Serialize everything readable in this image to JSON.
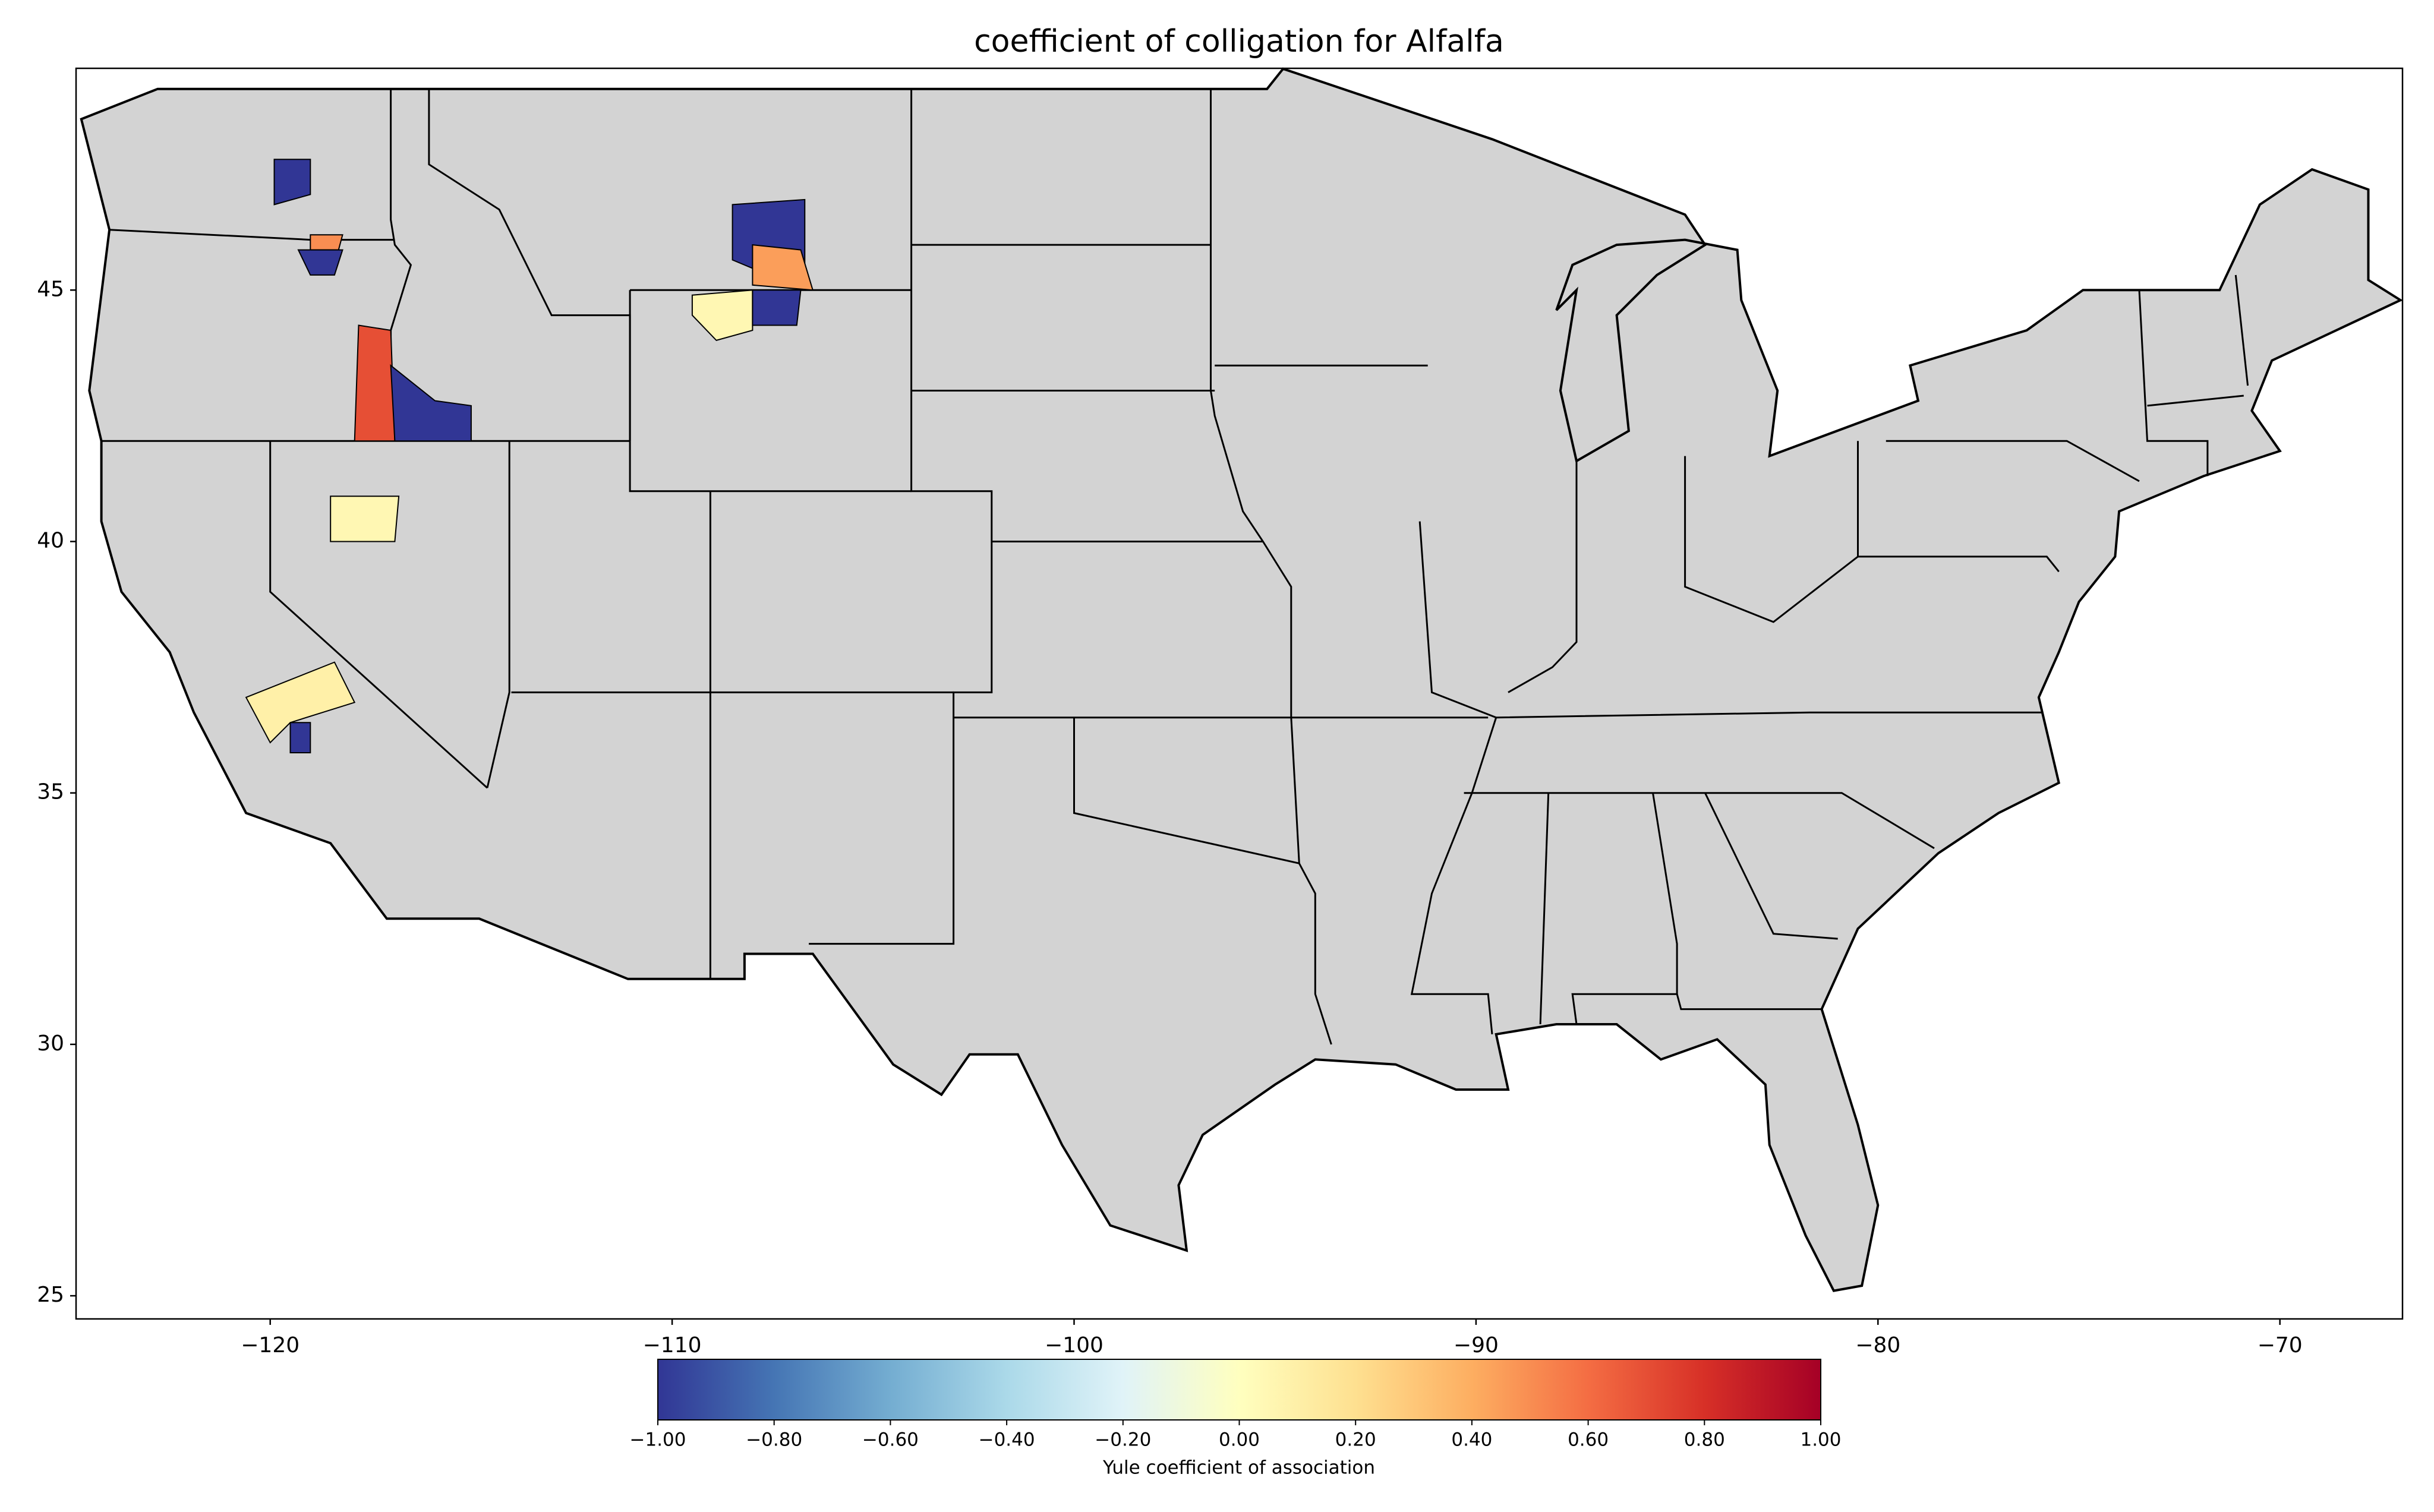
{
  "chart_data": {
    "type": "choropleth",
    "title": "coefficient of colligation for Alfalfa",
    "xlim": [
      -124.83,
      -66.95
    ],
    "ylim": [
      24.54,
      49.41
    ],
    "xticks": [
      {
        "value": -120,
        "label": "−120"
      },
      {
        "value": -110,
        "label": "−110"
      },
      {
        "value": -100,
        "label": "−100"
      },
      {
        "value": -90,
        "label": "−90"
      },
      {
        "value": -80,
        "label": "−80"
      },
      {
        "value": -70,
        "label": "−70"
      }
    ],
    "yticks": [
      25,
      30,
      35,
      40,
      45
    ],
    "values": [
      -1,
      0.5,
      -1,
      0.7,
      -1,
      0.05,
      0.1,
      -1,
      -1,
      0.45,
      0.05,
      -1
    ],
    "colormap": "RdYlBu_r",
    "clim": [
      -1,
      1
    ],
    "colorbar_label": "Yule coefficient of association",
    "colorbar_ticks": [
      {
        "value": -1,
        "label": "−1.00"
      },
      {
        "value": -0.8,
        "label": "−0.80"
      },
      {
        "value": -0.6,
        "label": "−0.60"
      },
      {
        "value": -0.4,
        "label": "−0.40"
      },
      {
        "value": -0.2,
        "label": "−0.20"
      },
      {
        "value": 0,
        "label": "0.00"
      },
      {
        "value": 0.2,
        "label": "0.20"
      },
      {
        "value": 0.4,
        "label": "0.40"
      },
      {
        "value": 0.6,
        "label": "0.60"
      },
      {
        "value": 0.8,
        "label": "0.80"
      },
      {
        "value": 1,
        "label": "1.00"
      }
    ],
    "land_color": "#d3d3d3"
  }
}
